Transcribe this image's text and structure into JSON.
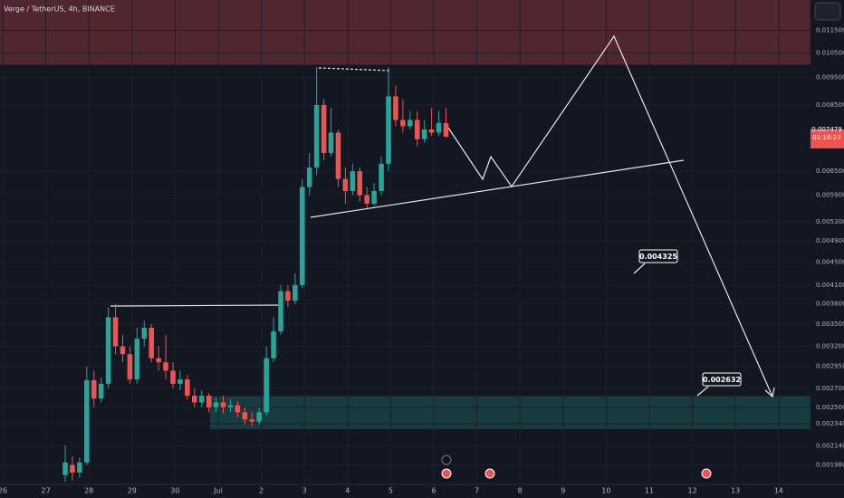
{
  "chart_data": {
    "type": "candlestick",
    "title": "Verge / TetherUS, 4h, BINANCE",
    "log_scale": true,
    "grid": true,
    "up_color": "#26a69a",
    "down_color": "#ef5350",
    "ylim": [
      0.00183,
      0.013
    ],
    "yticks": [
      {
        "value": 0.0115,
        "label": "0.011500"
      },
      {
        "value": 0.0105,
        "label": "0.010500"
      },
      {
        "value": 0.0095,
        "label": "0.009500"
      },
      {
        "value": 0.0085,
        "label": "0.008500"
      },
      {
        "value": 0.0065,
        "label": "0.006500"
      },
      {
        "value": 0.0059,
        "label": "0.005900"
      },
      {
        "value": 0.0053,
        "label": "0.005300"
      },
      {
        "value": 0.0049,
        "label": "0.004900"
      },
      {
        "value": 0.0045,
        "label": "0.004500"
      },
      {
        "value": 0.0041,
        "label": "0.004100"
      },
      {
        "value": 0.0038,
        "label": "0.003800"
      },
      {
        "value": 0.0035,
        "label": "0.003500"
      },
      {
        "value": 0.0032,
        "label": "0.003200"
      },
      {
        "value": 0.00295,
        "label": "0.002950"
      },
      {
        "value": 0.0027,
        "label": "0.002700"
      },
      {
        "value": 0.0025,
        "label": "0.002500"
      },
      {
        "value": 0.00234,
        "label": "0.002340"
      },
      {
        "value": 0.00214,
        "label": "0.002140"
      },
      {
        "value": 0.00198,
        "label": "0.001980"
      }
    ],
    "x_labels": [
      "26",
      "27",
      "28",
      "29",
      "30",
      "Jul",
      "2",
      "3",
      "4",
      "5",
      "6",
      "7",
      "8",
      "9",
      "10",
      "11",
      "12",
      "13",
      "14"
    ],
    "open": [
      0.0019,
      0.00198,
      0.00192,
      0.002,
      0.00279,
      0.00259,
      0.00275,
      0.0036,
      0.0032,
      0.0031,
      0.0028,
      0.0033,
      0.00345,
      0.00305,
      0.003,
      0.0029,
      0.00275,
      0.0028,
      0.00262,
      0.00255,
      0.00262,
      0.0025,
      0.00255,
      0.0025,
      0.00252,
      0.00245,
      0.00238,
      0.00236,
      0.00245,
      0.00305,
      0.0034,
      0.004,
      0.00385,
      0.0041,
      0.0061,
      0.0066,
      0.0085,
      0.007,
      0.0076,
      0.0063,
      0.006,
      0.0065,
      0.0059,
      0.0057,
      0.006,
      0.0067,
      0.0088,
      0.008,
      0.0078,
      0.008,
      0.0074,
      0.0077,
      0.0076,
      0.0079
    ],
    "high": [
      0.00214,
      0.00205,
      0.00204,
      0.00295,
      0.0029,
      0.00282,
      0.00375,
      0.0038,
      0.00335,
      0.0032,
      0.00345,
      0.00355,
      0.0035,
      0.0032,
      0.00335,
      0.003,
      0.0029,
      0.00285,
      0.0027,
      0.00268,
      0.00265,
      0.0026,
      0.00262,
      0.00258,
      0.00256,
      0.0025,
      0.00245,
      0.0025,
      0.0032,
      0.0036,
      0.0041,
      0.0041,
      0.0043,
      0.0063,
      0.007,
      0.0099,
      0.0087,
      0.0084,
      0.0077,
      0.0066,
      0.0067,
      0.0066,
      0.0061,
      0.0062,
      0.0069,
      0.0099,
      0.0092,
      0.0087,
      0.0083,
      0.0083,
      0.008,
      0.0084,
      0.0083,
      0.0084
    ],
    "low": [
      0.00185,
      0.00186,
      0.00188,
      0.00198,
      0.0025,
      0.00255,
      0.0027,
      0.0031,
      0.003,
      0.00275,
      0.00275,
      0.0032,
      0.003,
      0.0029,
      0.0028,
      0.0027,
      0.00268,
      0.00258,
      0.0025,
      0.0025,
      0.00245,
      0.00245,
      0.00244,
      0.00245,
      0.0024,
      0.00233,
      0.00232,
      0.00233,
      0.00242,
      0.003,
      0.00335,
      0.00375,
      0.0038,
      0.00405,
      0.0059,
      0.0064,
      0.0068,
      0.0069,
      0.0061,
      0.0057,
      0.0059,
      0.00575,
      0.0056,
      0.00565,
      0.0059,
      0.0065,
      0.0078,
      0.0076,
      0.0077,
      0.0072,
      0.0073,
      0.0075,
      0.0075,
      0.00745
    ],
    "close": [
      0.002,
      0.00192,
      0.002,
      0.00279,
      0.00259,
      0.00275,
      0.0036,
      0.0032,
      0.0031,
      0.0028,
      0.0033,
      0.00345,
      0.00305,
      0.003,
      0.0029,
      0.00275,
      0.0028,
      0.00262,
      0.00255,
      0.00262,
      0.0025,
      0.00255,
      0.0025,
      0.00252,
      0.00245,
      0.00238,
      0.00236,
      0.00245,
      0.00305,
      0.0034,
      0.004,
      0.00385,
      0.0041,
      0.0061,
      0.0066,
      0.0085,
      0.007,
      0.0076,
      0.0063,
      0.006,
      0.0065,
      0.0059,
      0.0057,
      0.006,
      0.0067,
      0.0088,
      0.008,
      0.0078,
      0.008,
      0.0074,
      0.0077,
      0.0076,
      0.0079,
      0.007479
    ],
    "last_price": 0.007479,
    "countdown": "01:18:23",
    "zones": [
      {
        "from": 0.01,
        "to": 0.013,
        "color": "#ef5350"
      },
      {
        "from": 0.00229,
        "to": 0.002616,
        "color": "#26a69a"
      }
    ],
    "annotations": [
      "0.004325",
      "0.002632"
    ]
  }
}
